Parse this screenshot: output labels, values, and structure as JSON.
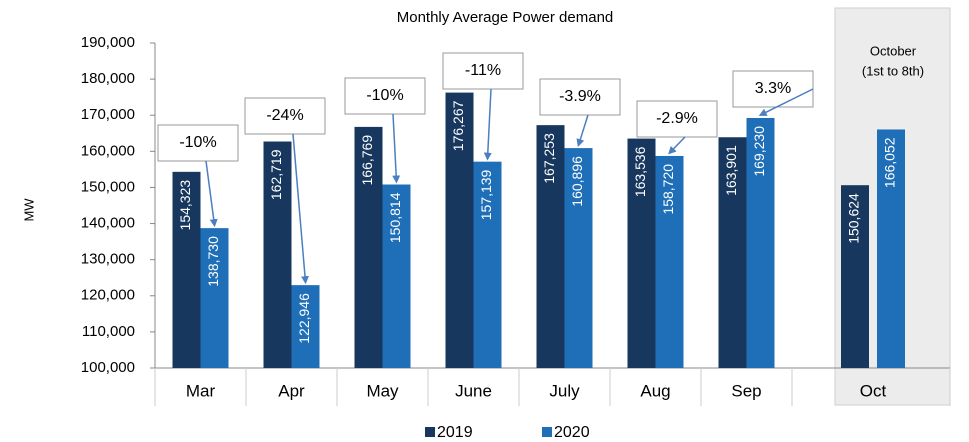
{
  "chart_data": {
    "type": "bar",
    "title": "Monthly Average  Power demand",
    "y_label": "MW",
    "categories": [
      "Mar",
      "Apr",
      "May",
      "June",
      "July",
      "Aug",
      "Sep",
      "Oct"
    ],
    "series": [
      {
        "name": "2019",
        "color": "#17375e",
        "values": [
          154323,
          162719,
          166769,
          176267,
          167253,
          163536,
          163901,
          150624
        ],
        "value_labels": [
          "154,323",
          "162,719",
          "166,769",
          "176,267",
          "167,253",
          "163,536",
          "163,901",
          "150,624"
        ]
      },
      {
        "name": "2020",
        "color": "#1f6fb8",
        "values": [
          138730,
          122946,
          150814,
          157139,
          160896,
          158720,
          169230,
          166052
        ],
        "value_labels": [
          "138,730",
          "122,946",
          "150,814",
          "157,139",
          "160,896",
          "158,720",
          "169,230",
          "166,052"
        ]
      }
    ],
    "change_labels": [
      "-10%",
      "-24%",
      "-10%",
      "-11%",
      "-3.9%",
      "-2.9%",
      "3.3%"
    ],
    "shaded_note": [
      "October",
      "(1st to 8th)"
    ],
    "ylim": [
      100000,
      190000
    ],
    "yticks": [
      {
        "value": 100000,
        "label": "100,000"
      },
      {
        "value": 110000,
        "label": "110,000"
      },
      {
        "value": 120000,
        "label": "120,000"
      },
      {
        "value": 130000,
        "label": "130,000"
      },
      {
        "value": 140000,
        "label": "140,000"
      },
      {
        "value": 150000,
        "label": "150,000"
      },
      {
        "value": 160000,
        "label": "160,000"
      },
      {
        "value": 170000,
        "label": "170,000"
      },
      {
        "value": 180000,
        "label": "180,000"
      },
      {
        "value": 190000,
        "label": "190,000"
      }
    ],
    "legend": "bottom"
  }
}
